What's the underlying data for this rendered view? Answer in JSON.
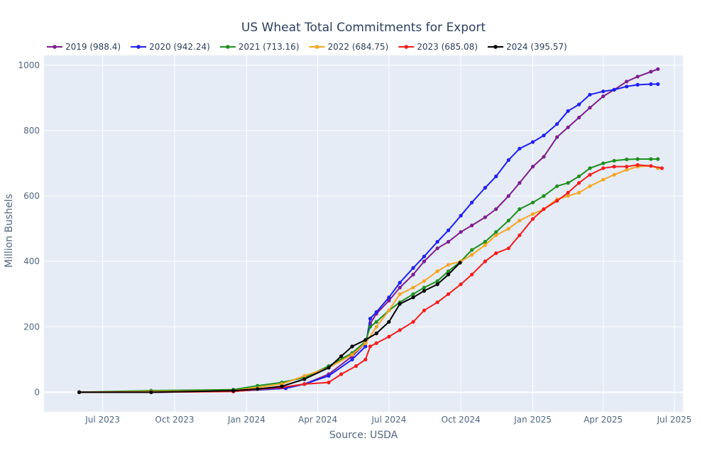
{
  "chart_data": {
    "type": "line",
    "title": "US Wheat Total Commitments for Export",
    "xlabel": "Source: USDA",
    "ylabel": "Million Bushels",
    "x_ticks": [
      "Jul 2023",
      "Oct 2023",
      "Jan 2024",
      "Apr 2024",
      "Jul 2024",
      "Oct 2024",
      "Jan 2025",
      "Apr 2025",
      "Jul 2025"
    ],
    "y_ticks": [
      0,
      200,
      400,
      600,
      800,
      1000
    ],
    "xlim": [
      "2023-04-17",
      "2025-07-12"
    ],
    "ylim": [
      -60,
      1030
    ],
    "grid": true,
    "legend_position": "top",
    "background": "#e5ecf6",
    "series": [
      {
        "name": "2019 (988.4)",
        "color": "#7f1d8f",
        "x": [
          "2023-06-01",
          "2023-09-01",
          "2023-12-15",
          "2024-02-20",
          "2024-03-15",
          "2024-04-15",
          "2024-05-15",
          "2024-06-01",
          "2024-06-07",
          "2024-06-15",
          "2024-07-01",
          "2024-07-15",
          "2024-08-01",
          "2024-08-15",
          "2024-09-01",
          "2024-09-15",
          "2024-10-01",
          "2024-10-15",
          "2024-11-01",
          "2024-11-15",
          "2024-12-01",
          "2024-12-15",
          "2025-01-01",
          "2025-01-15",
          "2025-02-01",
          "2025-02-15",
          "2025-03-01",
          "2025-03-15",
          "2025-04-01",
          "2025-04-15",
          "2025-05-01",
          "2025-05-15",
          "2025-06-01",
          "2025-06-10"
        ],
        "y": [
          0,
          0,
          3,
          12,
          25,
          55,
          110,
          150,
          210,
          240,
          280,
          320,
          360,
          400,
          440,
          460,
          490,
          510,
          535,
          560,
          600,
          640,
          690,
          720,
          780,
          810,
          840,
          870,
          905,
          925,
          950,
          965,
          980,
          988
        ]
      },
      {
        "name": "2020 (942.24)",
        "color": "#1f1ff5",
        "x": [
          "2023-06-01",
          "2023-09-01",
          "2023-12-15",
          "2024-02-20",
          "2024-03-15",
          "2024-04-15",
          "2024-05-15",
          "2024-06-01",
          "2024-06-07",
          "2024-06-15",
          "2024-07-01",
          "2024-07-15",
          "2024-08-01",
          "2024-08-15",
          "2024-09-01",
          "2024-09-15",
          "2024-10-01",
          "2024-10-15",
          "2024-11-01",
          "2024-11-15",
          "2024-12-01",
          "2024-12-15",
          "2025-01-01",
          "2025-01-15",
          "2025-02-01",
          "2025-02-15",
          "2025-03-01",
          "2025-03-15",
          "2025-04-01",
          "2025-04-15",
          "2025-05-01",
          "2025-05-15",
          "2025-06-01",
          "2025-06-10"
        ],
        "y": [
          0,
          0,
          3,
          12,
          25,
          50,
          100,
          140,
          225,
          245,
          290,
          335,
          380,
          415,
          460,
          495,
          540,
          580,
          625,
          660,
          710,
          745,
          765,
          785,
          820,
          860,
          880,
          910,
          920,
          925,
          935,
          940,
          942,
          942
        ]
      },
      {
        "name": "2021 (713.16)",
        "color": "#1e8f1e",
        "x": [
          "2023-06-01",
          "2023-09-01",
          "2023-12-15",
          "2024-01-15",
          "2024-02-15",
          "2024-03-15",
          "2024-04-15",
          "2024-05-15",
          "2024-06-01",
          "2024-06-07",
          "2024-06-15",
          "2024-07-01",
          "2024-07-15",
          "2024-08-01",
          "2024-08-15",
          "2024-09-01",
          "2024-09-15",
          "2024-10-01",
          "2024-10-15",
          "2024-11-01",
          "2024-11-15",
          "2024-12-01",
          "2024-12-15",
          "2025-01-01",
          "2025-01-15",
          "2025-02-01",
          "2025-02-15",
          "2025-03-01",
          "2025-03-15",
          "2025-04-01",
          "2025-04-15",
          "2025-05-01",
          "2025-05-15",
          "2025-06-01",
          "2025-06-10"
        ],
        "y": [
          0,
          5,
          8,
          20,
          30,
          45,
          80,
          120,
          155,
          200,
          215,
          250,
          275,
          300,
          320,
          340,
          370,
          400,
          435,
          460,
          490,
          525,
          560,
          580,
          600,
          630,
          640,
          660,
          685,
          700,
          708,
          712,
          713,
          713,
          713
        ]
      },
      {
        "name": "2022 (684.75)",
        "color": "#f5a623",
        "x": [
          "2023-06-01",
          "2023-09-01",
          "2023-12-15",
          "2024-02-15",
          "2024-03-15",
          "2024-04-15",
          "2024-05-15",
          "2024-06-01",
          "2024-06-15",
          "2024-07-01",
          "2024-07-15",
          "2024-08-01",
          "2024-08-15",
          "2024-09-01",
          "2024-09-15",
          "2024-10-01",
          "2024-10-15",
          "2024-11-01",
          "2024-11-15",
          "2024-12-01",
          "2024-12-15",
          "2025-01-01",
          "2025-01-15",
          "2025-02-01",
          "2025-02-15",
          "2025-03-01",
          "2025-03-15",
          "2025-04-01",
          "2025-04-15",
          "2025-05-01",
          "2025-05-15",
          "2025-06-01",
          "2025-06-10"
        ],
        "y": [
          0,
          2,
          5,
          25,
          50,
          75,
          115,
          150,
          200,
          250,
          300,
          320,
          340,
          370,
          390,
          400,
          420,
          450,
          480,
          500,
          525,
          545,
          560,
          590,
          600,
          610,
          630,
          650,
          665,
          680,
          690,
          692,
          685
        ]
      },
      {
        "name": "2023 (685.08)",
        "color": "#f51d1d",
        "x": [
          "2023-06-01",
          "2023-09-01",
          "2023-12-15",
          "2024-02-15",
          "2024-03-15",
          "2024-04-15",
          "2024-05-01",
          "2024-05-20",
          "2024-06-01",
          "2024-06-07",
          "2024-06-15",
          "2024-07-01",
          "2024-07-15",
          "2024-08-01",
          "2024-08-15",
          "2024-09-01",
          "2024-09-15",
          "2024-10-01",
          "2024-10-15",
          "2024-11-01",
          "2024-11-15",
          "2024-12-01",
          "2024-12-15",
          "2025-01-01",
          "2025-01-15",
          "2025-02-01",
          "2025-02-15",
          "2025-03-01",
          "2025-03-15",
          "2025-04-01",
          "2025-04-15",
          "2025-05-01",
          "2025-05-15",
          "2025-06-01",
          "2025-06-15"
        ],
        "y": [
          0,
          0,
          2,
          15,
          25,
          30,
          55,
          80,
          100,
          140,
          150,
          170,
          190,
          215,
          250,
          275,
          300,
          330,
          360,
          400,
          425,
          440,
          480,
          530,
          560,
          585,
          610,
          640,
          665,
          685,
          690,
          690,
          695,
          692,
          685
        ]
      },
      {
        "name": "2024 (395.57)",
        "color": "#000000",
        "x": [
          "2023-06-01",
          "2023-09-01",
          "2023-12-15",
          "2024-01-15",
          "2024-02-15",
          "2024-03-15",
          "2024-04-15",
          "2024-05-01",
          "2024-05-15",
          "2024-06-01",
          "2024-06-15",
          "2024-07-01",
          "2024-07-15",
          "2024-08-01",
          "2024-08-15",
          "2024-09-01",
          "2024-09-15",
          "2024-09-30"
        ],
        "y": [
          0,
          0,
          5,
          10,
          18,
          40,
          75,
          110,
          140,
          160,
          180,
          215,
          270,
          290,
          310,
          330,
          360,
          396
        ]
      }
    ]
  }
}
